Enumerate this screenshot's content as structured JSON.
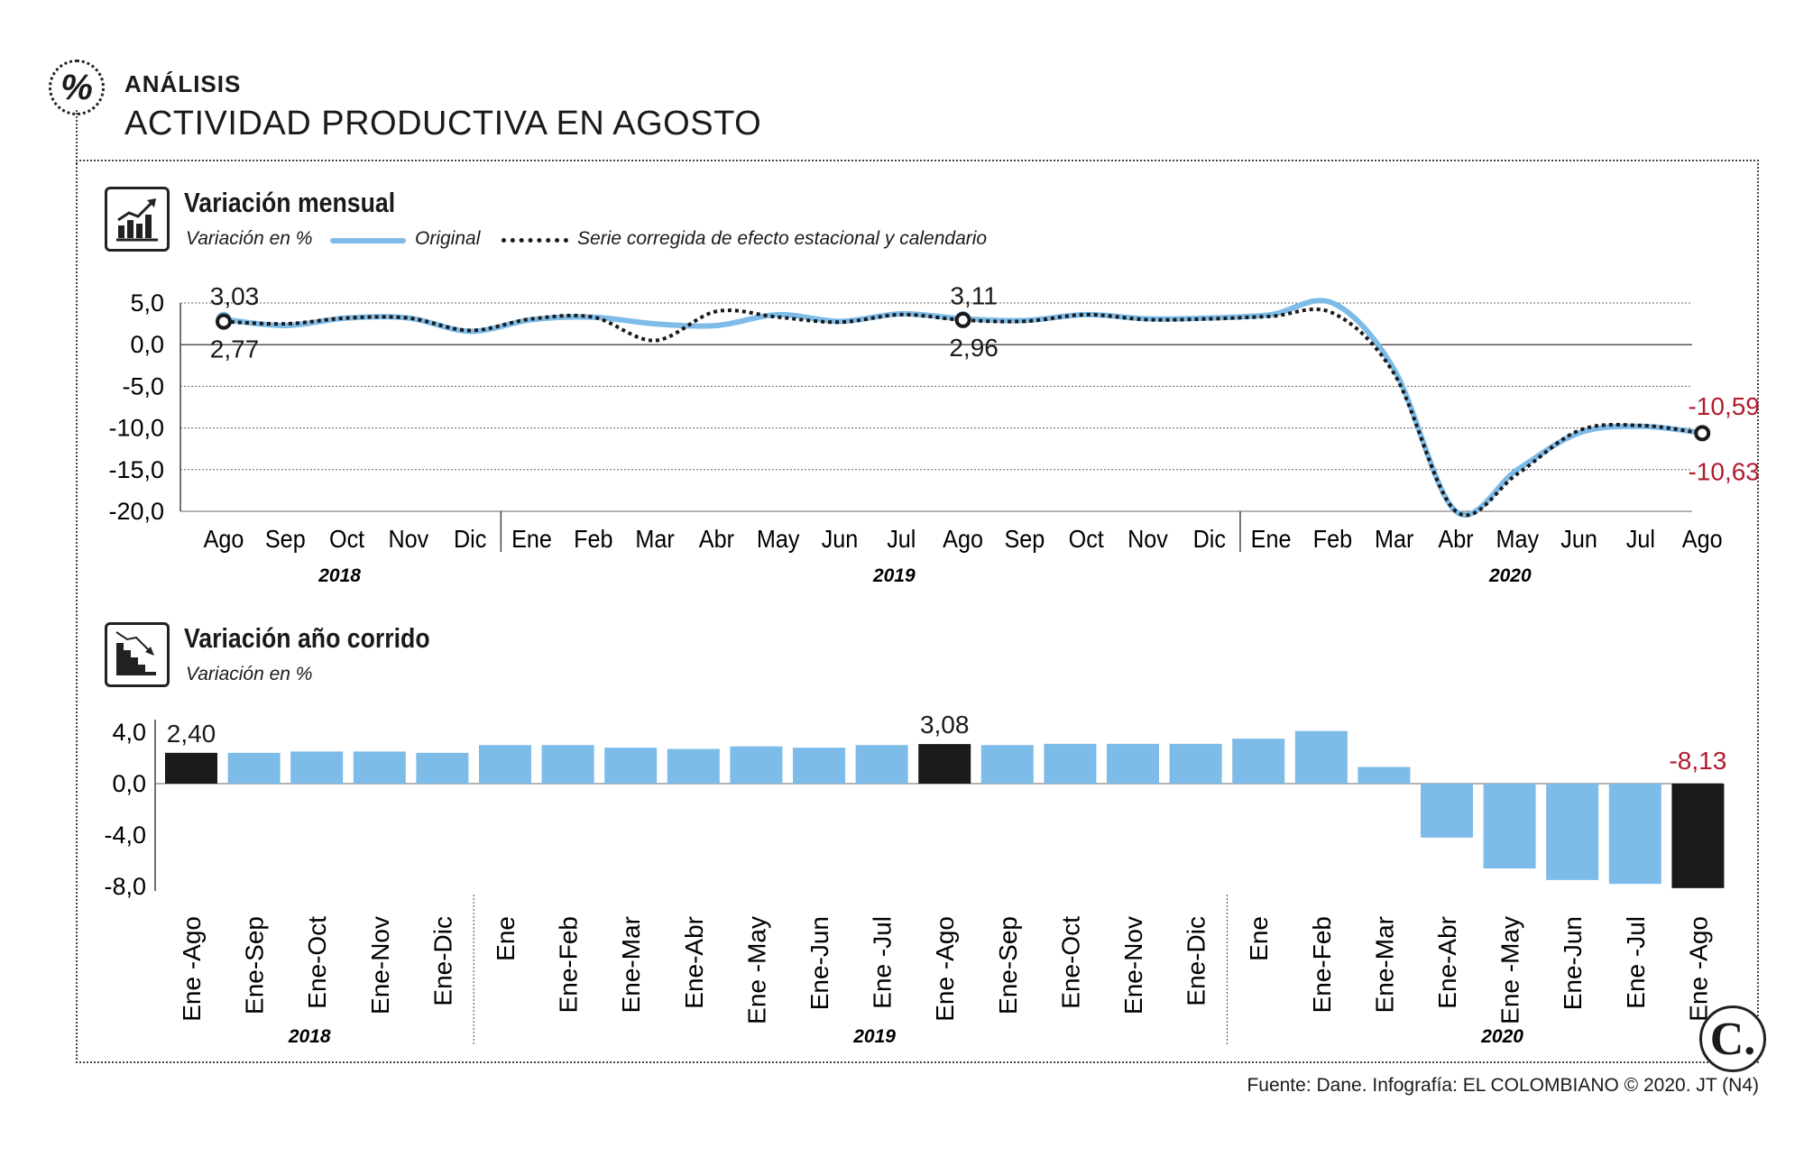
{
  "header": {
    "badge": "%",
    "section": "ANÁLISIS",
    "title": "ACTIVIDAD PRODUCTIVA EN AGOSTO"
  },
  "colors": {
    "original": "#7dbbe8",
    "adjusted": "#1a1a1a",
    "highlight": "#b01c2e",
    "bar": "#7dbbe8",
    "bar_highlight": "#1a1a1a"
  },
  "legend": {
    "unit": "Variación en %",
    "original": "Original",
    "adjusted": "Serie corregida de efecto estacional y calendario"
  },
  "footer": {
    "source": "Fuente: Dane. Infografía: EL COLOMBIANO © 2020. JT (N4)",
    "logo": "C."
  },
  "chart_data": [
    {
      "type": "line",
      "title": "Variación mensual",
      "ylabel": "Variación en %",
      "ylim": [
        -20,
        5
      ],
      "yticks": [
        "5,0",
        "0,0",
        "-5,0",
        "-10,0",
        "-15,0",
        "-20,0"
      ],
      "categories": [
        "Ago",
        "Sep",
        "Oct",
        "Nov",
        "Dic",
        "Ene",
        "Feb",
        "Mar",
        "Abr",
        "May",
        "Jun",
        "Jul",
        "Ago",
        "Sep",
        "Oct",
        "Nov",
        "Dic",
        "Ene",
        "Feb",
        "Mar",
        "Abr",
        "May",
        "Jun",
        "Jul",
        "Ago"
      ],
      "years": [
        "2018",
        "2019",
        "2020"
      ],
      "series": [
        {
          "name": "Original",
          "values": [
            3.03,
            2.3,
            3.2,
            3.2,
            1.6,
            3.0,
            3.3,
            2.5,
            2.3,
            3.6,
            2.8,
            3.7,
            3.11,
            2.9,
            3.6,
            3.1,
            3.2,
            3.6,
            5.0,
            -3.0,
            -20.0,
            -15.0,
            -10.6,
            -9.8,
            -10.59
          ]
        },
        {
          "name": "Serie corregida de efecto estacional y calendario",
          "values": [
            2.77,
            2.5,
            3.2,
            3.2,
            1.7,
            3.1,
            3.3,
            0.5,
            4.0,
            3.3,
            2.7,
            3.6,
            2.96,
            2.8,
            3.6,
            3.0,
            3.1,
            3.4,
            3.8,
            -3.5,
            -20.0,
            -15.5,
            -10.3,
            -9.7,
            -10.63
          ]
        }
      ],
      "annotations": [
        {
          "label": "3,03",
          "index": 0,
          "series": 0
        },
        {
          "label": "2,77",
          "index": 0,
          "series": 1
        },
        {
          "label": "3,11",
          "index": 12,
          "series": 0
        },
        {
          "label": "2,96",
          "index": 12,
          "series": 1
        },
        {
          "label": "-10,59",
          "index": 24,
          "series": 0
        },
        {
          "label": "-10,63",
          "index": 24,
          "series": 1
        }
      ]
    },
    {
      "type": "bar",
      "title": "Variación año corrido",
      "ylabel": "Variación en %",
      "ylim": [
        -8,
        4
      ],
      "yticks": [
        "4,0",
        "0,0",
        "-4,0",
        "-8,0"
      ],
      "categories": [
        "Ene -Ago",
        "Ene-Sep",
        "Ene-Oct",
        "Ene-Nov",
        "Ene-Dic",
        "Ene",
        "Ene-Feb",
        "Ene-Mar",
        "Ene-Abr",
        "Ene -May",
        "Ene-Jun",
        "Ene -Jul",
        "Ene -Ago",
        "Ene-Sep",
        "Ene-Oct",
        "Ene-Nov",
        "Ene-Dic",
        "Ene",
        "Ene-Feb",
        "Ene-Mar",
        "Ene-Abr",
        "Ene -May",
        "Ene-Jun",
        "Ene -Jul",
        "Ene -Ago"
      ],
      "years": [
        "2018",
        "2019",
        "2020"
      ],
      "values": [
        2.4,
        2.4,
        2.5,
        2.5,
        2.4,
        3.0,
        3.0,
        2.8,
        2.7,
        2.9,
        2.8,
        3.0,
        3.08,
        3.0,
        3.1,
        3.1,
        3.1,
        3.5,
        4.1,
        1.3,
        -4.2,
        -6.6,
        -7.5,
        -7.8,
        -8.13
      ],
      "annotations": [
        {
          "label": "2,40",
          "index": 0
        },
        {
          "label": "3,08",
          "index": 12
        },
        {
          "label": "-8,13",
          "index": 24
        }
      ]
    }
  ]
}
